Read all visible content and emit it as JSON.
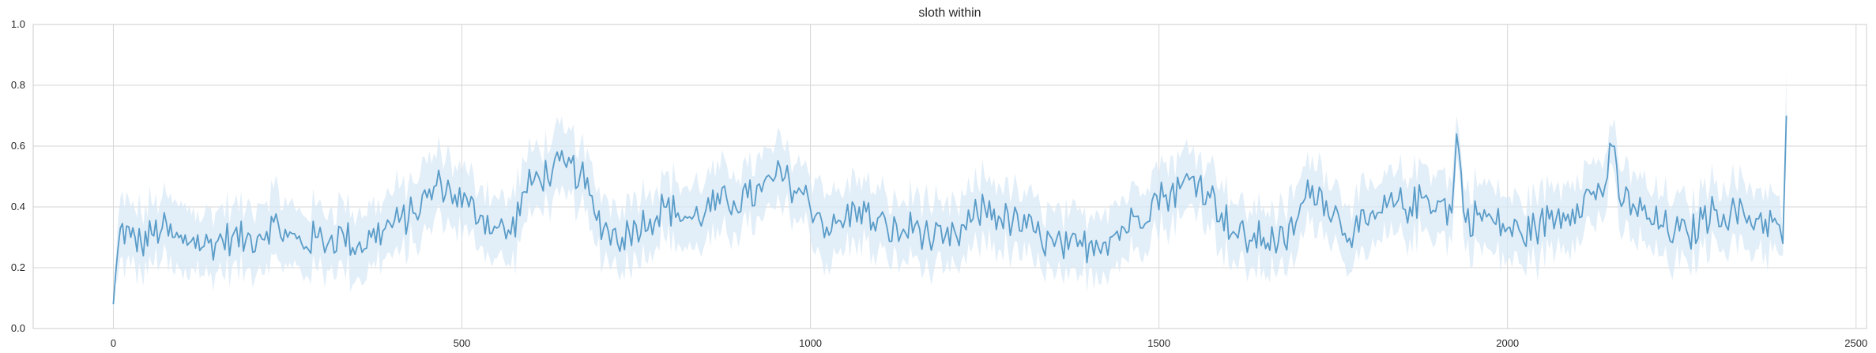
{
  "chart_data": {
    "type": "line",
    "title": "sloth within",
    "xlabel": "",
    "ylabel": "",
    "xlim": [
      -115,
      2515
    ],
    "ylim": [
      0.0,
      1.0
    ],
    "xticks": [
      0,
      500,
      1000,
      1500,
      2000,
      2500
    ],
    "xtick_labels": [
      "0",
      "500",
      "1000",
      "1500",
      "2000",
      "2500"
    ],
    "yticks": [
      0.0,
      0.2,
      0.4,
      0.6,
      0.8,
      1.0
    ],
    "ytick_labels": [
      "0.0",
      "0.2",
      "0.4",
      "0.6",
      "0.8",
      "1.0"
    ],
    "grid": true,
    "legend": "none",
    "colors": {
      "line": "#5a9cc8",
      "band": "#d6e7f5",
      "grid": "#d6d6d6",
      "frame": "#cccccc"
    },
    "series": [
      {
        "x": [
          0,
          10,
          25,
          40,
          55,
          70,
          85,
          100,
          115,
          130,
          150,
          170,
          190,
          210,
          230,
          250,
          270,
          290,
          310,
          330,
          350,
          370,
          390,
          410,
          430,
          450,
          470,
          490,
          510,
          530,
          550,
          570,
          590,
          610,
          630,
          650,
          670,
          690,
          710,
          730,
          750,
          770,
          790,
          810,
          830,
          850,
          870,
          890,
          910,
          930,
          950,
          970,
          990,
          1010,
          1030,
          1050,
          1070,
          1090,
          1110,
          1130,
          1150,
          1170,
          1190,
          1210,
          1230,
          1250,
          1270,
          1290,
          1310,
          1330,
          1350,
          1370,
          1390,
          1410,
          1430,
          1450,
          1470,
          1490,
          1510,
          1530,
          1550,
          1570,
          1590,
          1610,
          1630,
          1650,
          1665,
          1680,
          1700,
          1720,
          1740,
          1760,
          1780,
          1800,
          1820,
          1840,
          1860,
          1880,
          1900,
          1920,
          1927,
          1940,
          1960,
          1980,
          2000,
          2020,
          2040,
          2060,
          2080,
          2100,
          2120,
          2140,
          2150,
          2160,
          2180,
          2200,
          2220,
          2240,
          2260,
          2280,
          2300,
          2320,
          2340,
          2360,
          2380,
          2390,
          2395,
          2400
        ],
        "y": [
          0.08,
          0.33,
          0.3,
          0.28,
          0.31,
          0.33,
          0.3,
          0.28,
          0.3,
          0.27,
          0.29,
          0.3,
          0.29,
          0.31,
          0.35,
          0.3,
          0.28,
          0.3,
          0.29,
          0.31,
          0.27,
          0.3,
          0.33,
          0.35,
          0.38,
          0.43,
          0.48,
          0.44,
          0.4,
          0.37,
          0.33,
          0.31,
          0.45,
          0.5,
          0.52,
          0.53,
          0.51,
          0.38,
          0.32,
          0.3,
          0.34,
          0.36,
          0.4,
          0.38,
          0.36,
          0.39,
          0.41,
          0.42,
          0.43,
          0.45,
          0.5,
          0.48,
          0.44,
          0.38,
          0.32,
          0.36,
          0.4,
          0.35,
          0.33,
          0.31,
          0.34,
          0.3,
          0.28,
          0.3,
          0.35,
          0.4,
          0.37,
          0.35,
          0.33,
          0.3,
          0.27,
          0.26,
          0.27,
          0.29,
          0.3,
          0.33,
          0.37,
          0.42,
          0.44,
          0.46,
          0.5,
          0.45,
          0.38,
          0.31,
          0.29,
          0.3,
          0.29,
          0.28,
          0.37,
          0.47,
          0.42,
          0.35,
          0.32,
          0.34,
          0.38,
          0.41,
          0.4,
          0.43,
          0.42,
          0.38,
          0.64,
          0.35,
          0.38,
          0.35,
          0.33,
          0.31,
          0.33,
          0.36,
          0.38,
          0.41,
          0.44,
          0.47,
          0.6,
          0.43,
          0.41,
          0.36,
          0.34,
          0.32,
          0.3,
          0.36,
          0.39,
          0.38,
          0.37,
          0.36,
          0.35,
          0.34,
          0.28,
          0.7
        ],
        "band_half_width": [
          0.02,
          0.1,
          0.1,
          0.1,
          0.1,
          0.1,
          0.11,
          0.12,
          0.1,
          0.1,
          0.1,
          0.1,
          0.1,
          0.1,
          0.11,
          0.1,
          0.1,
          0.1,
          0.1,
          0.11,
          0.1,
          0.1,
          0.1,
          0.11,
          0.1,
          0.11,
          0.1,
          0.1,
          0.1,
          0.1,
          0.1,
          0.11,
          0.1,
          0.1,
          0.1,
          0.11,
          0.1,
          0.1,
          0.1,
          0.11,
          0.1,
          0.1,
          0.1,
          0.1,
          0.1,
          0.1,
          0.11,
          0.1,
          0.1,
          0.1,
          0.11,
          0.1,
          0.1,
          0.11,
          0.12,
          0.1,
          0.1,
          0.1,
          0.1,
          0.1,
          0.1,
          0.11,
          0.1,
          0.1,
          0.1,
          0.1,
          0.11,
          0.1,
          0.1,
          0.1,
          0.11,
          0.1,
          0.1,
          0.1,
          0.11,
          0.1,
          0.1,
          0.1,
          0.11,
          0.1,
          0.1,
          0.1,
          0.11,
          0.1,
          0.1,
          0.1,
          0.1,
          0.1,
          0.11,
          0.1,
          0.1,
          0.1,
          0.1,
          0.11,
          0.1,
          0.1,
          0.1,
          0.11,
          0.1,
          0.1,
          0.06,
          0.1,
          0.1,
          0.11,
          0.1,
          0.1,
          0.11,
          0.1,
          0.1,
          0.1,
          0.1,
          0.1,
          0.06,
          0.1,
          0.11,
          0.1,
          0.1,
          0.11,
          0.1,
          0.1,
          0.1,
          0.1,
          0.11,
          0.1,
          0.1,
          0.1,
          0.04,
          0.15
        ]
      }
    ]
  }
}
